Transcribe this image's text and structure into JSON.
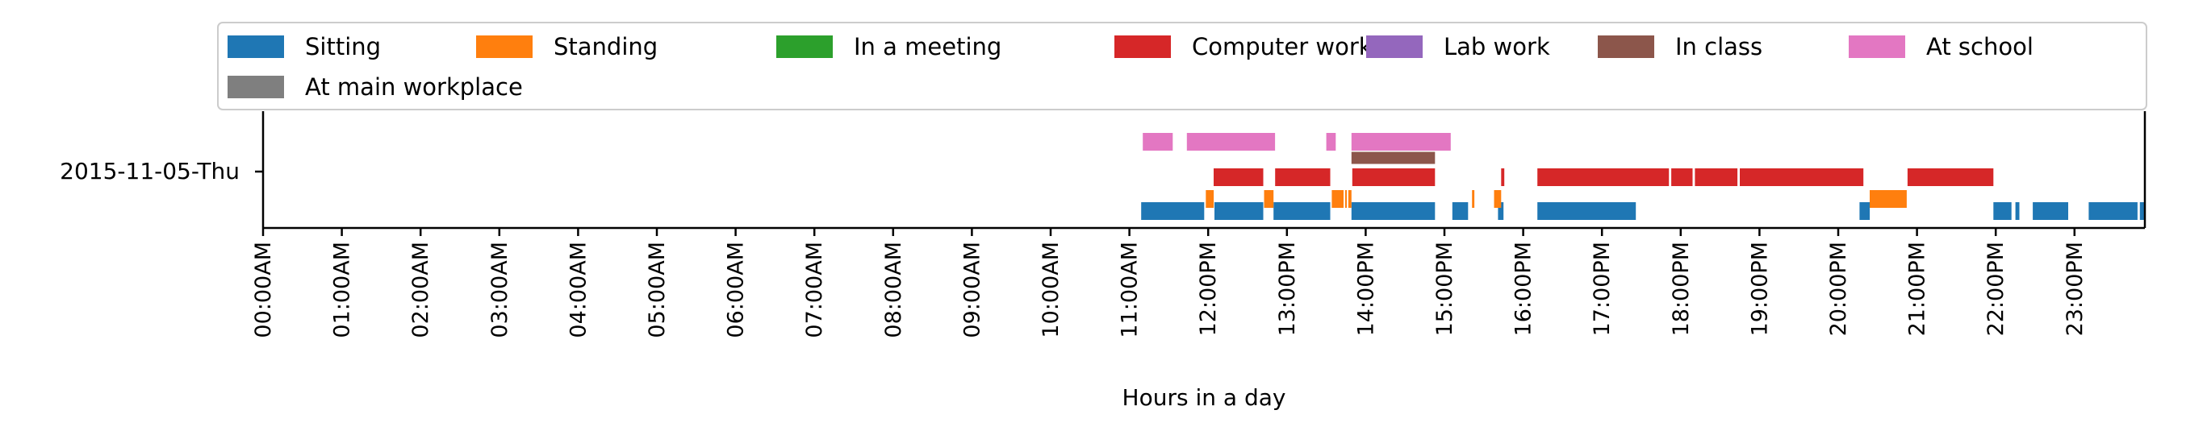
{
  "chart_data": {
    "type": "timeline",
    "title": "",
    "xlabel": "Hours in a day",
    "ylabel": "",
    "xlim": [
      0,
      24
    ],
    "row_label": "2015-11-05-Thu",
    "x_ticks": [
      "00:00AM",
      "01:00AM",
      "02:00AM",
      "03:00AM",
      "04:00AM",
      "05:00AM",
      "06:00AM",
      "07:00AM",
      "08:00AM",
      "09:00AM",
      "10:00AM",
      "11:00AM",
      "12:00PM",
      "13:00PM",
      "14:00PM",
      "15:00PM",
      "16:00PM",
      "17:00PM",
      "18:00PM",
      "19:00PM",
      "20:00PM",
      "21:00PM",
      "22:00PM",
      "23:00PM"
    ],
    "legend_position": "top",
    "series": [
      {
        "name": "Sitting",
        "color": "#1f77b4",
        "lane": 0,
        "intervals": [
          [
            11.15,
            11.95
          ],
          [
            12.08,
            12.7
          ],
          [
            12.83,
            13.55
          ],
          [
            13.82,
            14.88
          ],
          [
            15.1,
            15.3
          ],
          [
            15.68,
            15.75
          ],
          [
            16.18,
            17.43
          ],
          [
            20.27,
            20.4
          ],
          [
            21.97,
            22.2
          ],
          [
            22.25,
            22.3
          ],
          [
            22.47,
            22.92
          ],
          [
            23.18,
            23.8
          ],
          [
            23.83,
            23.9
          ]
        ]
      },
      {
        "name": "Standing",
        "color": "#ff7f0e",
        "lane": 1,
        "intervals": [
          [
            11.97,
            12.07
          ],
          [
            12.71,
            12.83
          ],
          [
            13.57,
            13.72
          ],
          [
            13.74,
            13.76
          ],
          [
            13.78,
            13.82
          ],
          [
            15.35,
            15.38
          ],
          [
            15.63,
            15.72
          ],
          [
            20.4,
            20.87
          ]
        ]
      },
      {
        "name": "In a meeting",
        "color": "#2ca02c",
        "lane": 2,
        "intervals": []
      },
      {
        "name": "Computer work",
        "color": "#d62728",
        "lane": 2,
        "intervals": [
          [
            12.07,
            12.7
          ],
          [
            12.85,
            13.55
          ],
          [
            13.83,
            14.88
          ],
          [
            15.72,
            15.76
          ],
          [
            16.18,
            17.85
          ],
          [
            17.88,
            18.15
          ],
          [
            18.18,
            18.72
          ],
          [
            18.75,
            20.32
          ],
          [
            20.88,
            21.97
          ]
        ]
      },
      {
        "name": "Lab work",
        "color": "#9467bd",
        "lane": 3,
        "intervals": []
      },
      {
        "name": "In class",
        "color": "#8c564b",
        "lane": 3,
        "intervals": [
          [
            13.82,
            14.88
          ]
        ]
      },
      {
        "name": "At school",
        "color": "#e377c2",
        "lane": 4,
        "intervals": [
          [
            11.17,
            11.55
          ],
          [
            11.73,
            12.85
          ],
          [
            13.5,
            13.62
          ],
          [
            13.82,
            15.08
          ]
        ]
      },
      {
        "name": "At main workplace",
        "color": "#7f7f7f",
        "lane": 5,
        "intervals": []
      }
    ]
  }
}
